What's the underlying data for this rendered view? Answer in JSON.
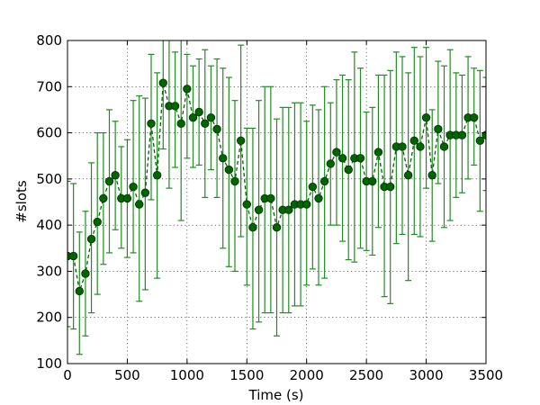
{
  "chart_data": {
    "type": "line",
    "title": "",
    "xlabel": "Time (s)",
    "ylabel": "#slots",
    "xlim": [
      0,
      3500
    ],
    "ylim": [
      100,
      800
    ],
    "xticks": [
      0,
      500,
      1000,
      1500,
      2000,
      2500,
      3000,
      3500
    ],
    "yticks": [
      100,
      200,
      300,
      400,
      500,
      600,
      700,
      800
    ],
    "grid": true,
    "colors": {
      "line": "#006400",
      "marker_fill": "#006400",
      "marker_edge": "#003300",
      "errorbar": "#228B22"
    },
    "series": [
      {
        "x": [
          0,
          50,
          100,
          150,
          200,
          250,
          300,
          350,
          400,
          450,
          500,
          550,
          600,
          650,
          700,
          750,
          800,
          850,
          900,
          950,
          1000,
          1050,
          1100,
          1150,
          1200,
          1250,
          1300,
          1350,
          1400,
          1450,
          1500,
          1550,
          1600,
          1650,
          1700,
          1750,
          1800,
          1850,
          1900,
          1950,
          2000,
          2050,
          2100,
          2150,
          2200,
          2250,
          2300,
          2350,
          2400,
          2450,
          2500,
          2550,
          2600,
          2650,
          2700,
          2750,
          2800,
          2850,
          2900,
          2950,
          3000,
          3050,
          3100,
          3150,
          3200,
          3250,
          3300,
          3350,
          3400,
          3450,
          3500
        ],
        "y": [
          333,
          333,
          257,
          295,
          370,
          407,
          458,
          495,
          508,
          458,
          458,
          483,
          445,
          470,
          620,
          508,
          708,
          658,
          658,
          620,
          695,
          633,
          645,
          620,
          633,
          608,
          545,
          520,
          495,
          583,
          445,
          395,
          433,
          458,
          458,
          395,
          433,
          433,
          445,
          445,
          445,
          483,
          458,
          495,
          533,
          558,
          545,
          520,
          545,
          545,
          495,
          495,
          558,
          483,
          483,
          570,
          570,
          508,
          583,
          570,
          633,
          508,
          608,
          570,
          595,
          595,
          595,
          633,
          633,
          583,
          595
        ],
        "yerr_low": [
          180,
          175,
          120,
          160,
          210,
          250,
          315,
          340,
          390,
          350,
          330,
          340,
          235,
          260,
          455,
          285,
          565,
          480,
          525,
          410,
          545,
          525,
          530,
          460,
          520,
          460,
          350,
          310,
          300,
          375,
          270,
          175,
          190,
          210,
          210,
          160,
          210,
          210,
          225,
          225,
          270,
          305,
          270,
          285,
          400,
          400,
          365,
          325,
          320,
          350,
          345,
          335,
          395,
          245,
          230,
          360,
          380,
          280,
          380,
          375,
          480,
          365,
          490,
          395,
          410,
          460,
          470,
          500,
          530,
          430,
          475
        ],
        "yerr_high": [
          495,
          490,
          385,
          430,
          535,
          600,
          600,
          650,
          625,
          570,
          585,
          670,
          680,
          675,
          770,
          730,
          855,
          835,
          775,
          805,
          770,
          745,
          760,
          780,
          745,
          760,
          740,
          720,
          670,
          790,
          610,
          610,
          670,
          700,
          700,
          630,
          655,
          655,
          665,
          665,
          625,
          660,
          650,
          700,
          665,
          715,
          725,
          715,
          775,
          740,
          645,
          655,
          725,
          725,
          735,
          775,
          765,
          730,
          785,
          765,
          785,
          650,
          755,
          745,
          780,
          730,
          725,
          765,
          740,
          735,
          720
        ]
      }
    ]
  }
}
